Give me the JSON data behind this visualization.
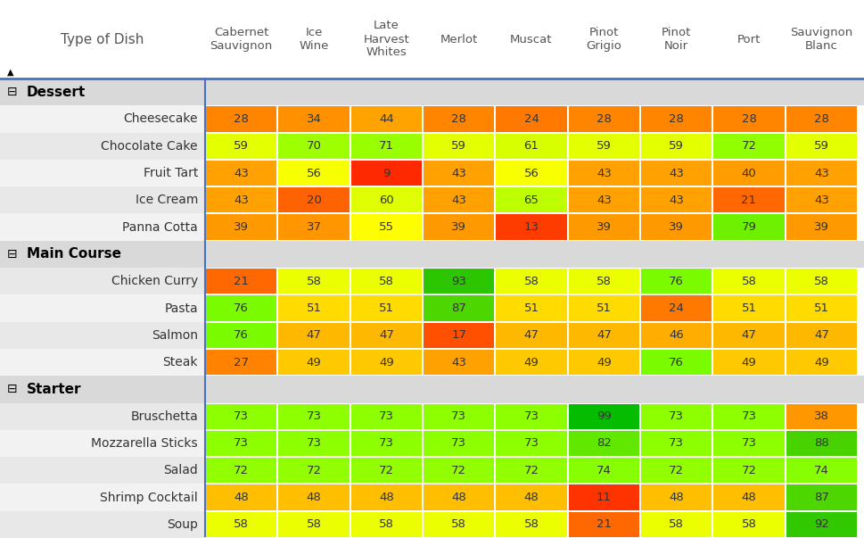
{
  "wine_columns": [
    "Cabernet\nSauvignon",
    "Ice\nWine",
    "Late\nHarvest\nWhites",
    "Merlot",
    "Muscat",
    "Pinot\nGrigio",
    "Pinot\nNoir",
    "Port",
    "Sauvignon\nBlanc"
  ],
  "categories_order": [
    "Dessert",
    "Main Course",
    "Starter"
  ],
  "categories": {
    "Dessert": [
      "Cheesecake",
      "Chocolate Cake",
      "Fruit Tart",
      "Ice Cream",
      "Panna Cotta"
    ],
    "Main Course": [
      "Chicken Curry",
      "Pasta",
      "Salmon",
      "Steak"
    ],
    "Starter": [
      "Bruschetta",
      "Mozzarella Sticks",
      "Salad",
      "Shrimp Cocktail",
      "Soup"
    ]
  },
  "scores": {
    "Cheesecake": [
      28,
      34,
      44,
      28,
      24,
      28,
      28,
      28,
      28
    ],
    "Chocolate Cake": [
      59,
      70,
      71,
      59,
      61,
      59,
      59,
      72,
      59
    ],
    "Fruit Tart": [
      43,
      56,
      9,
      43,
      56,
      43,
      43,
      40,
      43
    ],
    "Ice Cream": [
      43,
      20,
      60,
      43,
      65,
      43,
      43,
      21,
      43
    ],
    "Panna Cotta": [
      39,
      37,
      55,
      39,
      13,
      39,
      39,
      79,
      39
    ],
    "Chicken Curry": [
      21,
      58,
      58,
      93,
      58,
      58,
      76,
      58,
      58
    ],
    "Pasta": [
      76,
      51,
      51,
      87,
      51,
      51,
      24,
      51,
      51
    ],
    "Salmon": [
      76,
      47,
      47,
      17,
      47,
      47,
      46,
      47,
      47
    ],
    "Steak": [
      27,
      49,
      49,
      43,
      49,
      49,
      76,
      49,
      49
    ],
    "Bruschetta": [
      73,
      73,
      73,
      73,
      73,
      99,
      73,
      73,
      38
    ],
    "Mozzarella Sticks": [
      73,
      73,
      73,
      73,
      73,
      82,
      73,
      73,
      88
    ],
    "Salad": [
      72,
      72,
      72,
      72,
      72,
      74,
      72,
      72,
      74
    ],
    "Shrimp Cocktail": [
      48,
      48,
      48,
      48,
      48,
      11,
      48,
      48,
      87
    ],
    "Soup": [
      58,
      58,
      58,
      58,
      58,
      21,
      58,
      58,
      92
    ]
  },
  "header_bg": "#ffffff",
  "cat_bg": "#d9d9d9",
  "dish_bg_even": "#f2f2f2",
  "dish_bg_odd": "#e8e8e8",
  "cell_text_color": "#333333",
  "header_text_color": "#555555",
  "blue_line_color": "#4472C4",
  "blue_vert_line_color": "#4472C4",
  "cat_text_color": "#000000",
  "dish_text_color": "#333333"
}
